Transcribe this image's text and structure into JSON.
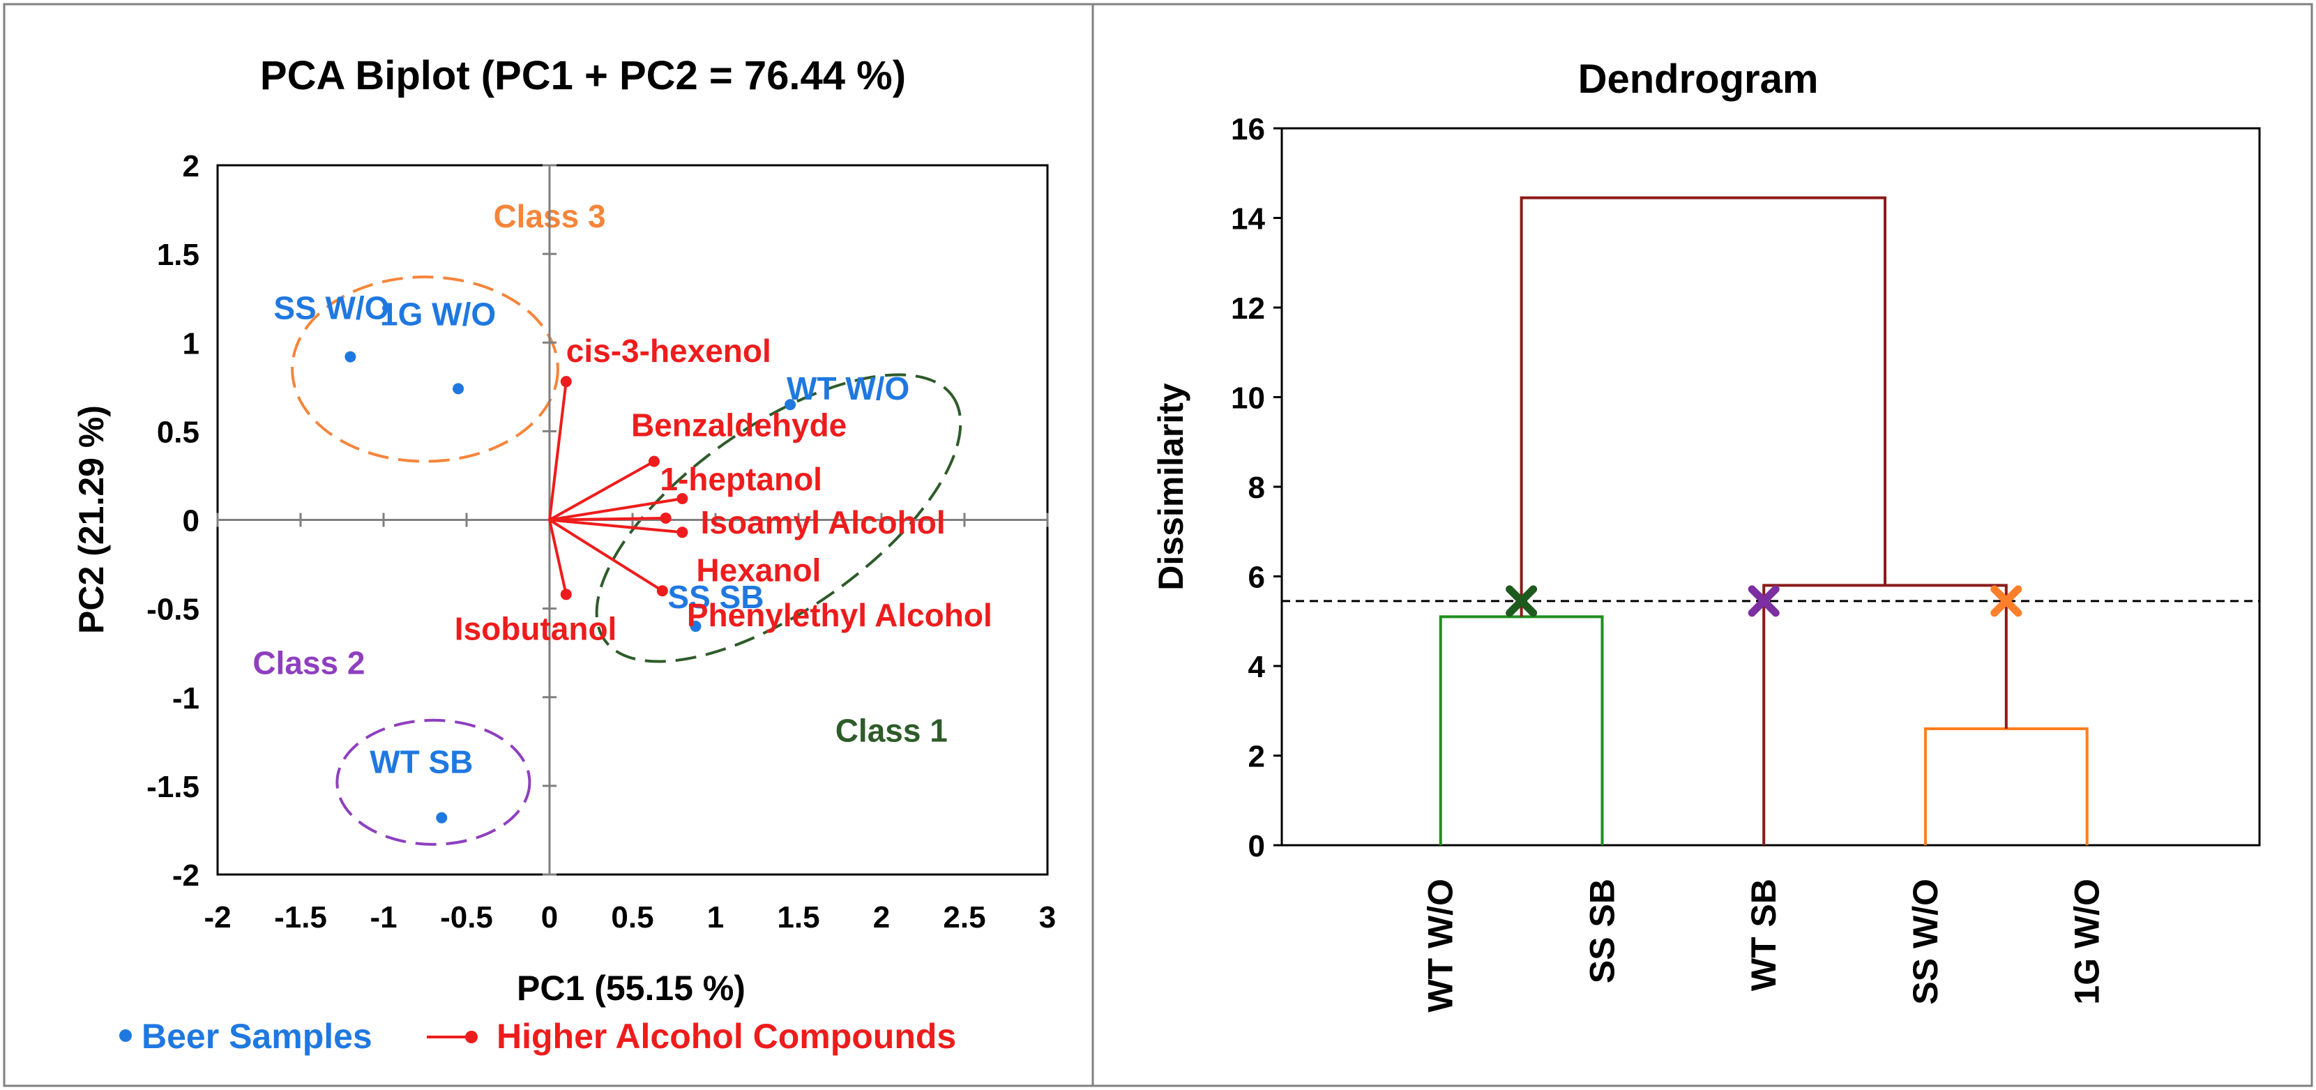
{
  "colors": {
    "sample": "#1f78e0",
    "compound": "#ee1c1c",
    "class1": "#2e5b2a",
    "class2": "#8e3fbf",
    "class3": "#f5853a",
    "dendro_red": "#8b1a1a",
    "dendro_green": "#1f8f1f",
    "dendro_orange": "#ff7f1e",
    "marker_green": "#1e5a1e",
    "marker_purple": "#7b2fa0",
    "marker_orange": "#ff7f2a",
    "axis": "#000000",
    "frame": "#808080"
  },
  "chart_data": [
    {
      "type": "scatter",
      "title": "PCA Biplot (PC1 + PC2 = 76.44 %)",
      "xlabel": "PC1 (55.15 %)",
      "ylabel": "PC2 (21.29 %)",
      "xlim": [
        -2,
        3
      ],
      "ylim": [
        -2,
        2
      ],
      "xticks": [
        -2,
        -1.5,
        -1,
        -0.5,
        0,
        0.5,
        1,
        1.5,
        2,
        2.5,
        3
      ],
      "xtick_labels": [
        "-2",
        "-1.5",
        "-1",
        "-0.5",
        "0",
        "0.5",
        "1",
        "1.5",
        "2",
        "2.5",
        "3"
      ],
      "yticks": [
        -2,
        -1.5,
        -1,
        -0.5,
        0,
        0.5,
        1,
        1.5,
        2
      ],
      "ytick_labels": [
        "-2",
        "-1.5",
        "-1",
        "-0.5",
        "0",
        "0.5",
        "1",
        "1.5",
        "2"
      ],
      "samples": [
        {
          "name": "SS W/O",
          "x": -1.2,
          "y": 0.92
        },
        {
          "name": "1G W/O",
          "x": -0.55,
          "y": 0.74
        },
        {
          "name": "WT W/O",
          "x": 1.45,
          "y": 0.65
        },
        {
          "name": "SS SB",
          "x": 0.88,
          "y": -0.6
        },
        {
          "name": "WT SB",
          "x": -0.65,
          "y": -1.68
        }
      ],
      "compounds": [
        {
          "name": "cis-3-hexenol",
          "x": 0.1,
          "y": 0.78
        },
        {
          "name": "Benzaldehyde",
          "x": 0.63,
          "y": 0.33
        },
        {
          "name": "1-heptanol",
          "x": 0.8,
          "y": 0.12
        },
        {
          "name": "Isoamyl Alcohol",
          "x": 0.7,
          "y": 0.01
        },
        {
          "name": "Hexanol",
          "x": 0.8,
          "y": -0.07
        },
        {
          "name": "Phenylethyl Alcohol",
          "x": 0.68,
          "y": -0.4
        },
        {
          "name": "Isobutanol",
          "x": 0.1,
          "y": -0.42
        }
      ],
      "classes": [
        {
          "name": "Class 3",
          "center": [
            -0.75,
            0.85
          ],
          "rx": 0.8,
          "ry": 0.52,
          "angle_deg": 0
        },
        {
          "name": "Class 2",
          "center": [
            -0.7,
            -1.48
          ],
          "rx": 0.58,
          "ry": 0.35,
          "angle_deg": 0
        },
        {
          "name": "Class 1",
          "center": [
            1.38,
            0.01
          ],
          "rx": 1.28,
          "ry": 0.52,
          "angle_deg": 35
        }
      ],
      "legend": [
        {
          "label": "Beer Samples",
          "kind": "dot"
        },
        {
          "label": "Higher Alcohol Compounds",
          "kind": "line-dot"
        }
      ]
    },
    {
      "type": "dendrogram",
      "title": "Dendrogram",
      "ylabel": "Dissimilarity",
      "ylim": [
        0,
        16
      ],
      "yticks": [
        0,
        2,
        4,
        6,
        8,
        10,
        12,
        14,
        16
      ],
      "ytick_labels": [
        "0",
        "2",
        "4",
        "6",
        "8",
        "10",
        "12",
        "14",
        "16"
      ],
      "leaves": [
        "WT W/O",
        "SS SB",
        "WT SB",
        "SS W/O",
        "1G W/O"
      ],
      "merges": [
        {
          "left": "SS W/O",
          "right": "1G W/O",
          "height": 2.6,
          "color": "dendro_orange"
        },
        {
          "left": "WT W/O",
          "right": "SS SB",
          "height": 5.1,
          "color": "dendro_green"
        },
        {
          "left": "WT SB",
          "right": "{SS W/O, 1G W/O}",
          "height": 5.8,
          "color": "dendro_red"
        },
        {
          "left": "{WT W/O, SS SB}",
          "right": "{WT SB, SS W/O, 1G W/O}",
          "height": 14.45,
          "color": "dendro_red"
        }
      ],
      "cut_height": 5.45,
      "cut_markers": [
        {
          "cluster": "Class 1",
          "color": "marker_green"
        },
        {
          "cluster": "Class 2",
          "color": "marker_purple"
        },
        {
          "cluster": "Class 3",
          "color": "marker_orange"
        }
      ]
    }
  ]
}
